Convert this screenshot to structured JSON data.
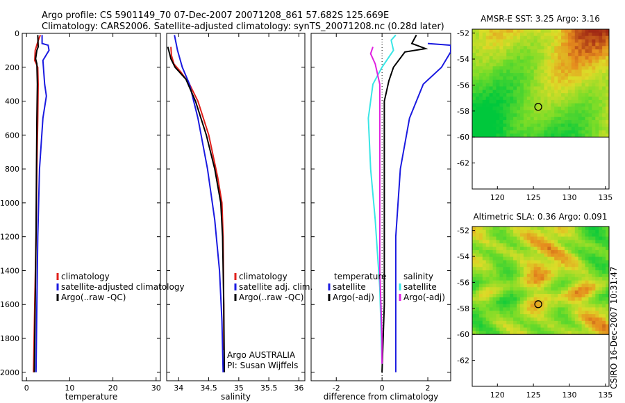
{
  "figure": {
    "title_line1": "Argo profile: CS 5901149_70 07-Dec-2007 20071208_861 57.682S 125.669E",
    "title_line2": "Climatology: CARS2006. Satellite-adjusted climatology: synTS_20071208.nc (0.28d later)",
    "credit": "CSIRO 16-Dec-2007 10:31:47"
  },
  "colors": {
    "red": "#e0201b",
    "blue": "#1a1ae0",
    "black": "#000000",
    "cyan": "#39e6e6",
    "magenta": "#e020e0"
  },
  "chart_data": [
    {
      "type": "line",
      "xlabel": "temperature",
      "xlim": [
        -1,
        31
      ],
      "xticks": [
        0,
        10,
        20,
        30
      ],
      "ylim": [
        2050,
        0
      ],
      "yticks": [
        0,
        200,
        400,
        600,
        800,
        1000,
        1200,
        1400,
        1600,
        1800,
        2000
      ],
      "series": [
        {
          "name": "climatology",
          "color": "red",
          "points": [
            [
              3.2,
              10
            ],
            [
              2.6,
              50
            ],
            [
              2.0,
              100
            ],
            [
              1.9,
              160
            ],
            [
              2.6,
              200
            ],
            [
              2.7,
              300
            ],
            [
              2.6,
              500
            ],
            [
              2.4,
              800
            ],
            [
              2.2,
              1200
            ],
            [
              1.9,
              1600
            ],
            [
              1.6,
              2000
            ]
          ]
        },
        {
          "name": "satellite-adjusted climatology",
          "color": "blue",
          "points": [
            [
              3.6,
              10
            ],
            [
              3.6,
              60
            ],
            [
              5.0,
              70
            ],
            [
              5.2,
              100
            ],
            [
              3.8,
              160
            ],
            [
              4.2,
              300
            ],
            [
              4.6,
              370
            ],
            [
              3.8,
              500
            ],
            [
              3.0,
              800
            ],
            [
              2.6,
              1200
            ],
            [
              2.4,
              1600
            ],
            [
              2.2,
              2000
            ]
          ]
        },
        {
          "name": "Argo(..raw -QC)",
          "color": "black",
          "points": [
            [
              2.6,
              10
            ],
            [
              2.7,
              80
            ],
            [
              2.4,
              100
            ],
            [
              2.1,
              150
            ],
            [
              2.4,
              180
            ],
            [
              2.5,
              300
            ],
            [
              2.4,
              500
            ],
            [
              2.3,
              800
            ],
            [
              2.2,
              1200
            ],
            [
              2.0,
              1600
            ],
            [
              1.8,
              2000
            ]
          ]
        }
      ],
      "legend": [
        "climatology",
        "satellite-adjusted climatology",
        "Argo(..raw -QC)"
      ]
    },
    {
      "type": "line",
      "xlabel": "salinity",
      "xlim": [
        33.8,
        36.1
      ],
      "xticks": [
        34,
        34.5,
        35,
        35.5,
        36
      ],
      "xticklabels": [
        "34",
        "34.5",
        "35",
        "35.5",
        "36"
      ],
      "ylim": [
        2050,
        0
      ],
      "series": [
        {
          "name": "climatology",
          "color": "red",
          "points": [
            [
              33.87,
              80
            ],
            [
              33.88,
              130
            ],
            [
              33.92,
              180
            ],
            [
              34.04,
              230
            ],
            [
              34.18,
              300
            ],
            [
              34.32,
              400
            ],
            [
              34.5,
              600
            ],
            [
              34.65,
              850
            ],
            [
              34.72,
              1000
            ],
            [
              34.74,
              1200
            ],
            [
              34.75,
              1600
            ],
            [
              34.75,
              1870
            ]
          ]
        },
        {
          "name": "satellite adj. clim.",
          "color": "blue",
          "points": [
            [
              33.93,
              10
            ],
            [
              33.98,
              100
            ],
            [
              34.06,
              200
            ],
            [
              34.18,
              300
            ],
            [
              34.32,
              500
            ],
            [
              34.48,
              800
            ],
            [
              34.6,
              1100
            ],
            [
              34.68,
              1400
            ],
            [
              34.72,
              1700
            ],
            [
              34.74,
              2000
            ]
          ]
        },
        {
          "name": "Argo(..raw -QC)",
          "color": "black",
          "points": [
            [
              33.82,
              80
            ],
            [
              33.87,
              150
            ],
            [
              33.94,
              200
            ],
            [
              34.12,
              270
            ],
            [
              34.28,
              400
            ],
            [
              34.46,
              600
            ],
            [
              34.6,
              800
            ],
            [
              34.7,
              1000
            ],
            [
              34.73,
              1200
            ],
            [
              34.75,
              1600
            ],
            [
              34.76,
              2000
            ]
          ]
        }
      ],
      "legend": [
        "climatology",
        "satellite adj. clim.",
        "Argo(..raw -QC)"
      ],
      "annotation": [
        "Argo AUSTRALIA",
        "PI: Susan Wijffels"
      ]
    },
    {
      "type": "line",
      "xlabel": "difference from climatology",
      "xlim": [
        -3.1,
        3.0
      ],
      "xticks": [
        -2,
        0,
        2
      ],
      "ylim": [
        2050,
        0
      ],
      "series": [
        {
          "name": "temperature satellite",
          "color": "blue",
          "points": [
            [
              2.0,
              60
            ],
            [
              3.0,
              70
            ],
            [
              3.0,
              110
            ],
            [
              2.6,
              200
            ],
            [
              1.8,
              300
            ],
            [
              1.2,
              500
            ],
            [
              0.8,
              800
            ],
            [
              0.6,
              1200
            ],
            [
              0.6,
              1600
            ],
            [
              0.6,
              2000
            ]
          ]
        },
        {
          "name": "temperature Argo(-adj)",
          "color": "black",
          "points": [
            [
              1.5,
              10
            ],
            [
              1.3,
              60
            ],
            [
              1.9,
              90
            ],
            [
              1.0,
              110
            ],
            [
              0.5,
              200
            ],
            [
              0.3,
              280
            ],
            [
              0.1,
              400
            ],
            [
              0.1,
              800
            ],
            [
              0.1,
              1600
            ],
            [
              0.0,
              2000
            ]
          ]
        },
        {
          "name": "salinity satellite",
          "color": "cyan",
          "points": [
            [
              0.6,
              10
            ],
            [
              0.4,
              40
            ],
            [
              0.5,
              100
            ],
            [
              0.0,
              200
            ],
            [
              -0.4,
              300
            ],
            [
              -0.6,
              500
            ],
            [
              -0.5,
              800
            ],
            [
              -0.3,
              1100
            ],
            [
              -0.1,
              1500
            ],
            [
              0.0,
              1950
            ]
          ]
        },
        {
          "name": "salinity Argo(-adj)",
          "color": "magenta",
          "points": [
            [
              -0.4,
              80
            ],
            [
              -0.5,
              120
            ],
            [
              -0.3,
              180
            ],
            [
              -0.1,
              300
            ],
            [
              -0.1,
              600
            ],
            [
              -0.1,
              1000
            ],
            [
              -0.1,
              1400
            ],
            [
              0.0,
              1800
            ],
            [
              0.0,
              1950
            ]
          ]
        }
      ],
      "legend_left_title": "temperature",
      "legend_right_title": "salinity",
      "legend_left": [
        "satellite",
        "Argo(-adj)"
      ],
      "legend_right": [
        "satellite",
        "Argo(-adj)"
      ]
    },
    {
      "type": "heatmap",
      "title": "AMSR-E SST: 3.25 Argo: 3.16",
      "xlim": [
        116.5,
        135.5
      ],
      "ylim": [
        -64,
        -51.7
      ],
      "xticks": [
        120,
        125,
        130,
        135
      ],
      "yticks": [
        -52,
        -54,
        -56,
        -58,
        -60,
        -62
      ],
      "data_lat_min": -60,
      "marker": [
        125.67,
        -57.68
      ]
    },
    {
      "type": "heatmap",
      "title": "Altimetric SLA: 0.36 Argo: 0.091",
      "xlim": [
        116.5,
        135.5
      ],
      "ylim": [
        -64,
        -51.7
      ],
      "xticks": [
        120,
        125,
        130,
        135
      ],
      "yticks": [
        -52,
        -54,
        -56,
        -58,
        -60,
        -62
      ],
      "data_lat_min": -60,
      "marker": [
        125.67,
        -57.68
      ]
    }
  ]
}
